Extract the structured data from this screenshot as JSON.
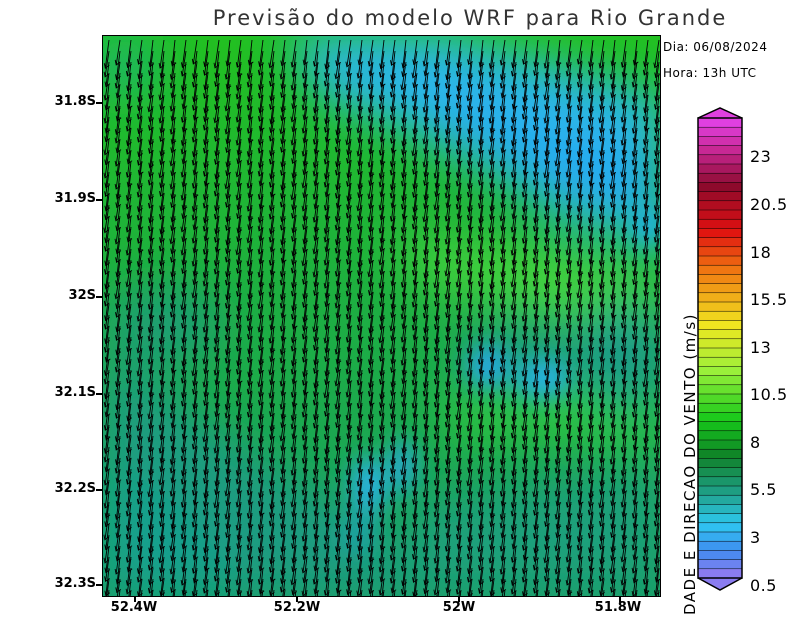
{
  "title": "Previsão do modelo WRF para Rio Grande",
  "date_label": "Dia: 06/08/2024",
  "time_label": "Hora: 13h UTC",
  "latitude_labels": [
    "31.8S",
    "31.9S",
    "32S",
    "32.1S",
    "32.2S",
    "32.3S"
  ],
  "longitude_labels": [
    "52.4W",
    "52.2W",
    "52W",
    "51.8W"
  ],
  "colorbar": {
    "variable_label": "DADE E DIRECAO DO VENTO (m/s)",
    "tick_labels": [
      "23",
      "20.5",
      "18",
      "15.5",
      "13",
      "10.5",
      "8",
      "5.5",
      "3",
      "0.5"
    ],
    "colors": {
      "bottom_violet": "#8a7cf0",
      "blue": "#3f8cf0",
      "cyan": "#2ec8f0",
      "teal": "#1f9f86",
      "green": "#16c81a",
      "lime": "#9af03a",
      "yellow": "#f0f020",
      "orange": "#f07a12",
      "red": "#e01010",
      "dark_red": "#8a0a2c",
      "magenta": "#e040e0"
    }
  },
  "map_colors": {
    "green": "#1ec81e",
    "cyan": "#22b4f0",
    "teal": "#1a9a7c",
    "arrows": "#000000"
  }
}
